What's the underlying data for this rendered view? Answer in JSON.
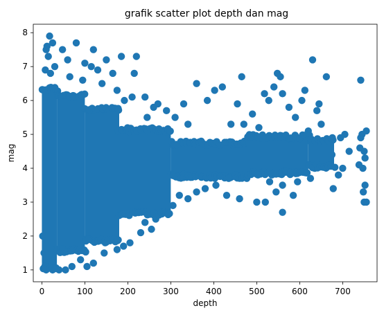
{
  "chart_data": {
    "type": "scatter",
    "title": "grafik scatter plot depth dan mag",
    "xlabel": "depth",
    "ylabel": "mag",
    "xlim": [
      -20,
      780
    ],
    "ylim": [
      0.65,
      8.25
    ],
    "xticks": [
      0,
      100,
      200,
      300,
      400,
      500,
      600,
      700
    ],
    "yticks": [
      1,
      2,
      3,
      4,
      5,
      6,
      7,
      8
    ],
    "grid": false,
    "color": "#1f77b4",
    "dense_regions": [
      {
        "depth_range": [
          0,
          35
        ],
        "mag_range": [
          1.0,
          6.4
        ]
      },
      {
        "depth_range": [
          35,
          100
        ],
        "mag_range": [
          1.5,
          6.2
        ]
      },
      {
        "depth_range": [
          100,
          180
        ],
        "mag_range": [
          1.8,
          5.8
        ]
      },
      {
        "depth_range": [
          180,
          300
        ],
        "mag_range": [
          2.6,
          5.2
        ]
      },
      {
        "depth_range": [
          300,
          480
        ],
        "mag_range": [
          3.7,
          4.8
        ]
      },
      {
        "depth_range": [
          480,
          620
        ],
        "mag_range": [
          3.8,
          5.0
        ]
      },
      {
        "depth_range": [
          620,
          680
        ],
        "mag_range": [
          4.0,
          4.9
        ]
      }
    ],
    "points": [
      {
        "x": 18,
        "y": 7.9
      },
      {
        "x": 12,
        "y": 7.6
      },
      {
        "x": 25,
        "y": 7.7
      },
      {
        "x": 10,
        "y": 7.5
      },
      {
        "x": 15,
        "y": 7.3
      },
      {
        "x": 30,
        "y": 7.0
      },
      {
        "x": 8,
        "y": 6.9
      },
      {
        "x": 20,
        "y": 6.8
      },
      {
        "x": 48,
        "y": 7.5
      },
      {
        "x": 60,
        "y": 7.2
      },
      {
        "x": 80,
        "y": 7.7
      },
      {
        "x": 100,
        "y": 7.1
      },
      {
        "x": 120,
        "y": 7.5
      },
      {
        "x": 115,
        "y": 7.0
      },
      {
        "x": 130,
        "y": 6.9
      },
      {
        "x": 150,
        "y": 7.2
      },
      {
        "x": 165,
        "y": 6.8
      },
      {
        "x": 185,
        "y": 7.3
      },
      {
        "x": 215,
        "y": 6.8
      },
      {
        "x": 220,
        "y": 7.3
      },
      {
        "x": 65,
        "y": 6.7
      },
      {
        "x": 95,
        "y": 6.6
      },
      {
        "x": 140,
        "y": 6.5
      },
      {
        "x": 175,
        "y": 6.3
      },
      {
        "x": 192,
        "y": 6.0
      },
      {
        "x": 210,
        "y": 6.1
      },
      {
        "x": 240,
        "y": 6.1
      },
      {
        "x": 260,
        "y": 5.8
      },
      {
        "x": 245,
        "y": 5.5
      },
      {
        "x": 270,
        "y": 5.9
      },
      {
        "x": 290,
        "y": 5.7
      },
      {
        "x": 310,
        "y": 5.5
      },
      {
        "x": 330,
        "y": 5.9
      },
      {
        "x": 340,
        "y": 5.3
      },
      {
        "x": 360,
        "y": 6.5
      },
      {
        "x": 385,
        "y": 6.0
      },
      {
        "x": 402,
        "y": 6.3
      },
      {
        "x": 420,
        "y": 6.4
      },
      {
        "x": 440,
        "y": 5.3
      },
      {
        "x": 465,
        "y": 6.7
      },
      {
        "x": 455,
        "y": 5.9
      },
      {
        "x": 470,
        "y": 5.3
      },
      {
        "x": 490,
        "y": 5.6
      },
      {
        "x": 505,
        "y": 5.2
      },
      {
        "x": 518,
        "y": 6.2
      },
      {
        "x": 528,
        "y": 6.0
      },
      {
        "x": 540,
        "y": 6.4
      },
      {
        "x": 548,
        "y": 6.8
      },
      {
        "x": 555,
        "y": 6.7
      },
      {
        "x": 560,
        "y": 6.2
      },
      {
        "x": 575,
        "y": 5.8
      },
      {
        "x": 590,
        "y": 5.5
      },
      {
        "x": 605,
        "y": 6.0
      },
      {
        "x": 612,
        "y": 6.3
      },
      {
        "x": 630,
        "y": 7.2
      },
      {
        "x": 640,
        "y": 5.7
      },
      {
        "x": 650,
        "y": 5.3
      },
      {
        "x": 662,
        "y": 6.7
      },
      {
        "x": 645,
        "y": 5.9
      },
      {
        "x": 620,
        "y": 5.1
      },
      {
        "x": 678,
        "y": 3.4
      },
      {
        "x": 690,
        "y": 3.8
      },
      {
        "x": 700,
        "y": 4.0
      },
      {
        "x": 675,
        "y": 4.4
      },
      {
        "x": 695,
        "y": 4.9
      },
      {
        "x": 705,
        "y": 5.0
      },
      {
        "x": 742,
        "y": 6.6
      },
      {
        "x": 740,
        "y": 4.6
      },
      {
        "x": 745,
        "y": 5.0
      },
      {
        "x": 748,
        "y": 3.3
      },
      {
        "x": 750,
        "y": 3.0
      },
      {
        "x": 752,
        "y": 3.5
      },
      {
        "x": 755,
        "y": 5.1
      },
      {
        "x": 752,
        "y": 4.3
      },
      {
        "x": 747,
        "y": 4.0
      },
      {
        "x": 742,
        "y": 4.9
      },
      {
        "x": 738,
        "y": 4.1
      },
      {
        "x": 755,
        "y": 3.0
      },
      {
        "x": 750,
        "y": 4.5
      },
      {
        "x": 715,
        "y": 4.5
      },
      {
        "x": 560,
        "y": 2.7
      },
      {
        "x": 520,
        "y": 3.0
      },
      {
        "x": 500,
        "y": 3.0
      },
      {
        "x": 460,
        "y": 3.1
      },
      {
        "x": 430,
        "y": 3.2
      },
      {
        "x": 405,
        "y": 3.5
      },
      {
        "x": 380,
        "y": 3.4
      },
      {
        "x": 360,
        "y": 3.3
      },
      {
        "x": 340,
        "y": 3.1
      },
      {
        "x": 320,
        "y": 3.2
      },
      {
        "x": 305,
        "y": 2.9
      },
      {
        "x": 290,
        "y": 2.7
      },
      {
        "x": 275,
        "y": 3.0
      },
      {
        "x": 265,
        "y": 2.5
      },
      {
        "x": 255,
        "y": 2.2
      },
      {
        "x": 240,
        "y": 2.4
      },
      {
        "x": 230,
        "y": 2.1
      },
      {
        "x": 205,
        "y": 1.8
      },
      {
        "x": 190,
        "y": 1.7
      },
      {
        "x": 175,
        "y": 1.6
      },
      {
        "x": 160,
        "y": 1.9
      },
      {
        "x": 145,
        "y": 1.5
      },
      {
        "x": 120,
        "y": 1.2
      },
      {
        "x": 105,
        "y": 1.1
      },
      {
        "x": 90,
        "y": 1.3
      },
      {
        "x": 70,
        "y": 1.1
      },
      {
        "x": 55,
        "y": 1.0
      },
      {
        "x": 40,
        "y": 1.0
      },
      {
        "x": 25,
        "y": 1.0
      },
      {
        "x": 10,
        "y": 1.0
      },
      {
        "x": 5,
        "y": 1.5
      },
      {
        "x": 2,
        "y": 2.0
      },
      {
        "x": 585,
        "y": 3.2
      },
      {
        "x": 595,
        "y": 3.6
      },
      {
        "x": 610,
        "y": 3.9
      },
      {
        "x": 625,
        "y": 3.7
      },
      {
        "x": 635,
        "y": 4.0
      },
      {
        "x": 560,
        "y": 3.5
      },
      {
        "x": 545,
        "y": 3.3
      },
      {
        "x": 530,
        "y": 3.6
      }
    ]
  }
}
